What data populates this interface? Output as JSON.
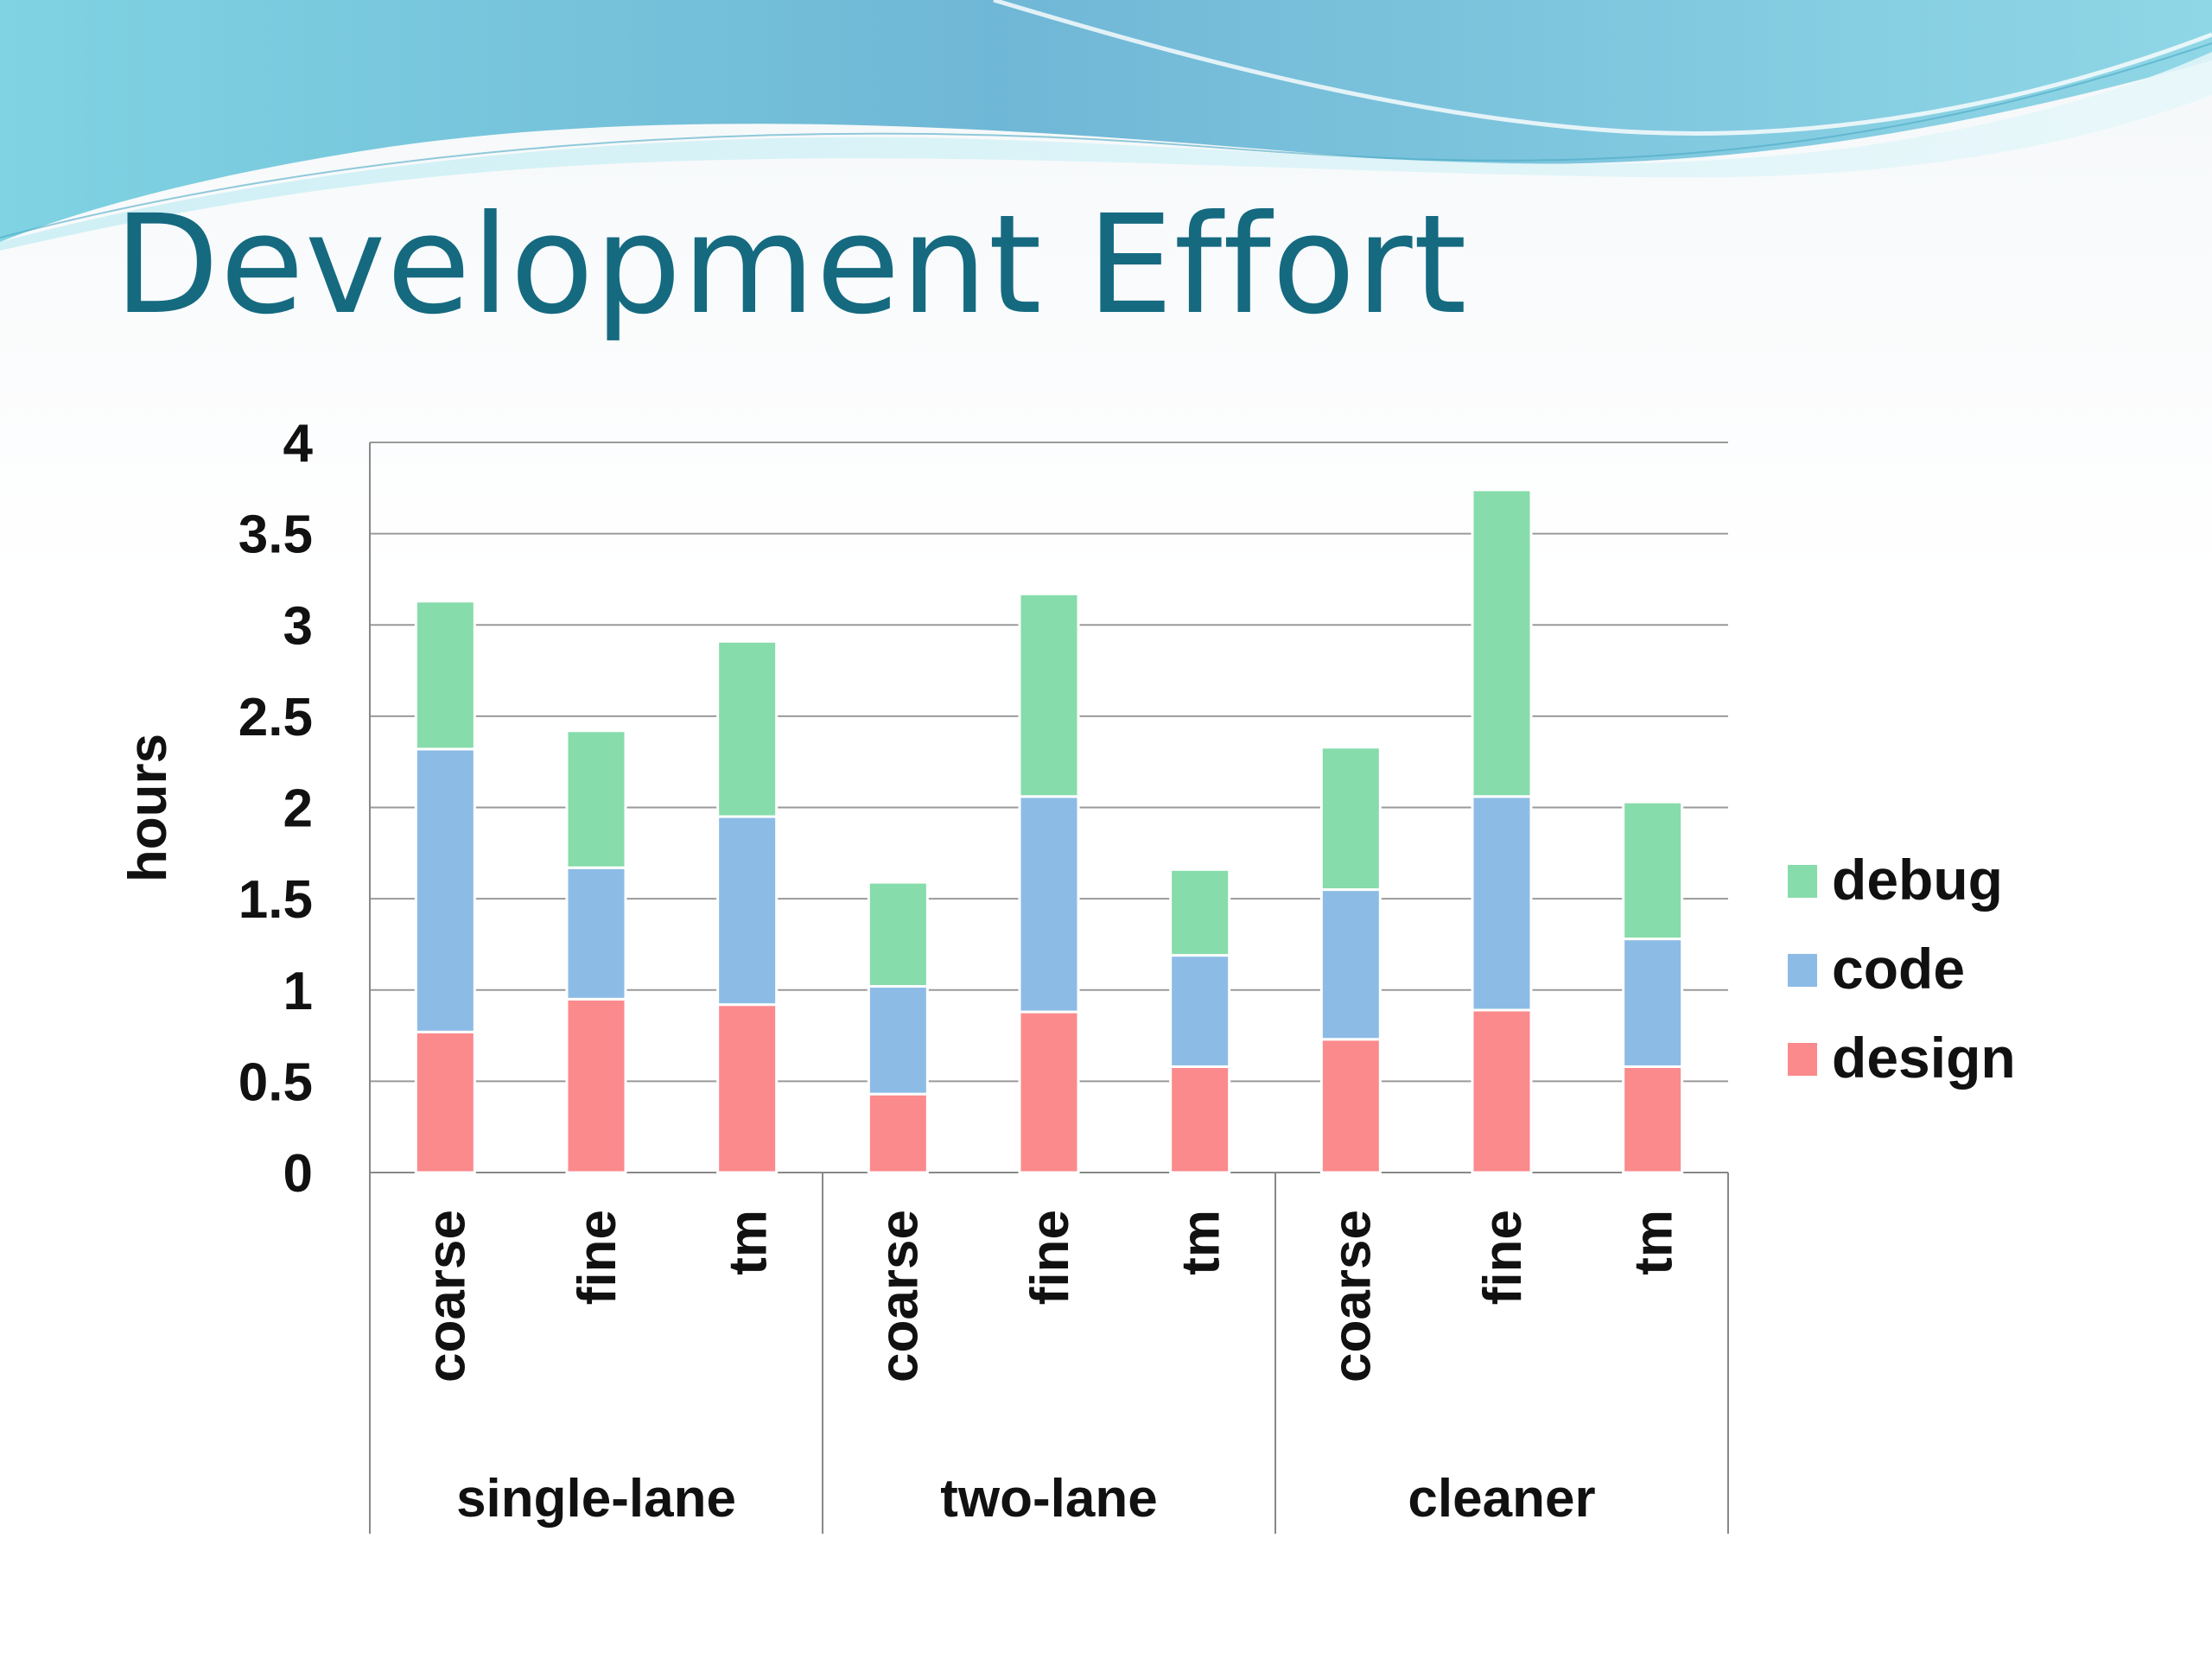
{
  "slide": {
    "title": "Development Effort"
  },
  "colors": {
    "title": "#156a80",
    "debug": "#86dcab",
    "code": "#8cbce6",
    "design": "#fb8a8d"
  },
  "chart_data": {
    "type": "bar",
    "stacked": true,
    "title": "",
    "xlabel": "",
    "ylabel": "hours",
    "ylim": [
      0,
      4
    ],
    "yticks": [
      "0",
      "0.5",
      "1",
      "1.5",
      "2",
      "2.5",
      "3",
      "3.5",
      "4"
    ],
    "grid": true,
    "legend_position": "right",
    "groups": [
      {
        "name": "single-lane",
        "categories": [
          "coarse",
          "fine",
          "tm"
        ]
      },
      {
        "name": "two-lane",
        "categories": [
          "coarse",
          "fine",
          "tm"
        ]
      },
      {
        "name": "cleaner",
        "categories": [
          "coarse",
          "fine",
          "tm"
        ]
      }
    ],
    "series": [
      {
        "name": "design",
        "color": "#fb8a8d",
        "values": [
          0.77,
          0.95,
          0.92,
          0.43,
          0.88,
          0.58,
          0.73,
          0.89,
          0.58
        ]
      },
      {
        "name": "code",
        "color": "#8cbce6",
        "values": [
          1.55,
          0.72,
          1.03,
          0.59,
          1.18,
          0.61,
          0.82,
          1.17,
          0.7
        ]
      },
      {
        "name": "debug",
        "color": "#86dcab",
        "values": [
          0.81,
          0.75,
          0.96,
          0.57,
          1.11,
          0.47,
          0.78,
          1.68,
          0.75
        ]
      }
    ],
    "legend_order": [
      "debug",
      "code",
      "design"
    ]
  }
}
